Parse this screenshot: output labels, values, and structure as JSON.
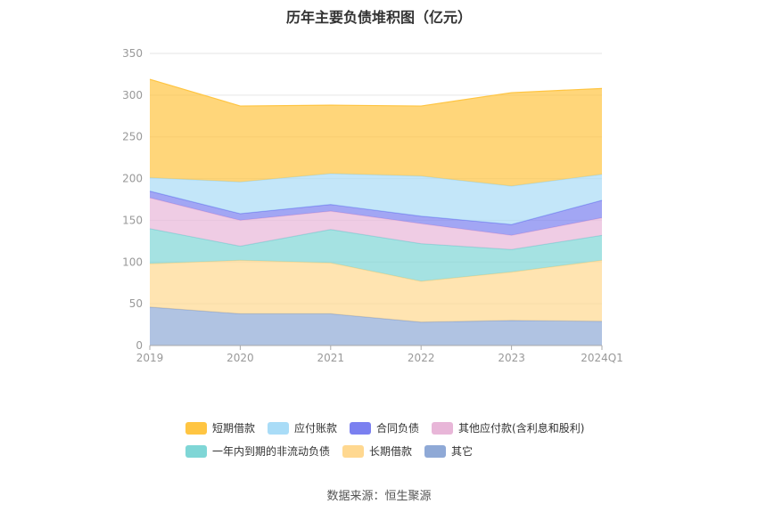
{
  "title": "历年主要负债堆积图（亿元）",
  "source": "数据来源：恒生聚源",
  "chart_data": {
    "type": "area",
    "stacked": true,
    "categories": [
      "2019",
      "2020",
      "2021",
      "2022",
      "2023",
      "2024Q1"
    ],
    "ylim": [
      0,
      350
    ],
    "yticks": [
      0,
      50,
      100,
      150,
      200,
      250,
      300,
      350
    ],
    "grid": true,
    "legend_position": "bottom",
    "series": [
      {
        "name": "其它",
        "color": "#8fa9d6",
        "values": [
          46,
          38,
          38,
          28,
          30,
          29
        ]
      },
      {
        "name": "长期借款",
        "color": "#ffd890",
        "values": [
          52,
          64,
          61,
          49,
          58,
          73
        ]
      },
      {
        "name": "一年内到期的非流动负债",
        "color": "#7fd6d6",
        "values": [
          42,
          17,
          40,
          45,
          27,
          30
        ]
      },
      {
        "name": "其他应付款(含利息和股利)",
        "color": "#e8b6d8",
        "values": [
          37,
          31,
          22,
          24,
          17,
          21
        ]
      },
      {
        "name": "合同负债",
        "color": "#7b80f0",
        "values": [
          8,
          8,
          8,
          9,
          13,
          21
        ]
      },
      {
        "name": "应付账款",
        "color": "#a9dcf7",
        "values": [
          16,
          38,
          37,
          48,
          46,
          31
        ]
      },
      {
        "name": "短期借款",
        "color": "#ffc542",
        "values": [
          118,
          91,
          82,
          84,
          112,
          103
        ]
      }
    ]
  }
}
